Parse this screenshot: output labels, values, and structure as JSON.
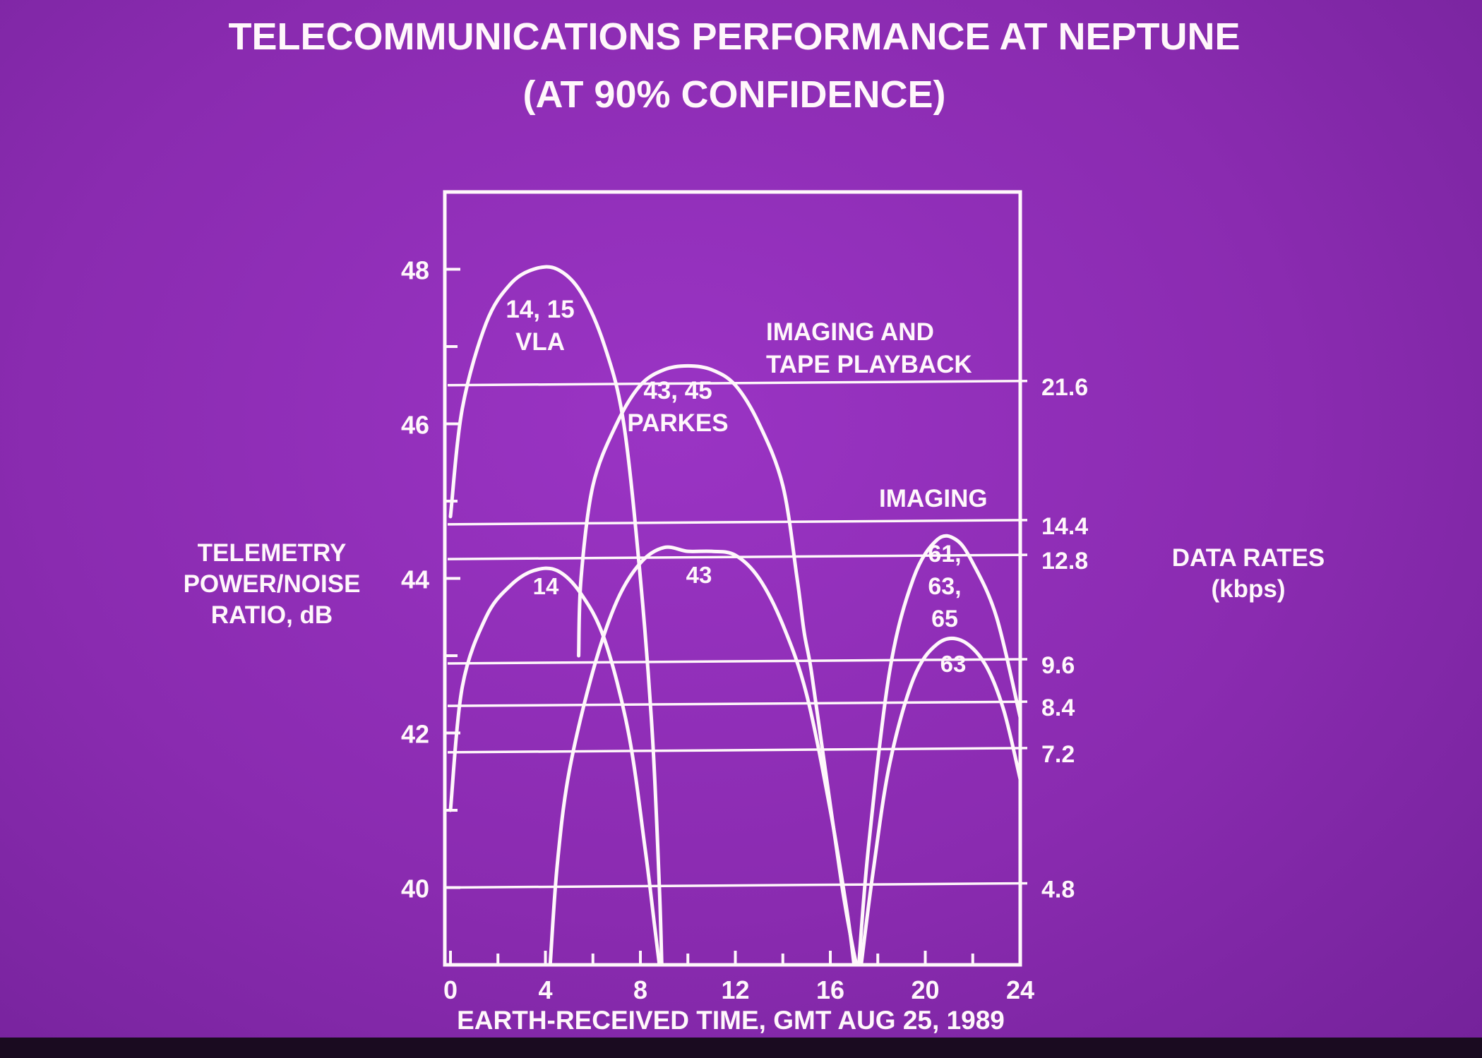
{
  "colors": {
    "background": "#8a2bb0",
    "ink": "#fff7fb",
    "bottom_band": "#1a0b20"
  },
  "chart_data": {
    "type": "line",
    "title": "TELECOMMUNICATIONS PERFORMANCE AT NEPTUNE",
    "subtitle": "(AT 90% CONFIDENCE)",
    "xlabel": "EARTH-RECEIVED TIME, GMT AUG 25, 1989",
    "ylabel_lines": [
      "TELEMETRY",
      "POWER/NOISE",
      "RATIO, dB"
    ],
    "y2label_lines": [
      "DATA RATES",
      "(kbps)"
    ],
    "xlim": [
      0,
      24
    ],
    "ylim": [
      39,
      49
    ],
    "x_ticks": [
      "0",
      "4",
      "8",
      "12",
      "16",
      "20",
      "24"
    ],
    "y_ticks": [
      "40",
      "42",
      "44",
      "46",
      "48"
    ],
    "grid": false,
    "data_rate_thresholds": [
      {
        "label": "21.6",
        "db": 46.5
      },
      {
        "label": "14.4",
        "db": 44.7
      },
      {
        "label": "12.8",
        "db": 44.25
      },
      {
        "label": "9.6",
        "db": 42.9
      },
      {
        "label": "8.4",
        "db": 42.35
      },
      {
        "label": "7.2",
        "db": 41.75
      },
      {
        "label": "4.8",
        "db": 40.0
      }
    ],
    "threshold_labels": [
      {
        "text_lines": [
          "IMAGING AND",
          "TAPE PLAYBACK"
        ]
      },
      {
        "text_lines": [
          "IMAGING"
        ]
      }
    ],
    "series": [
      {
        "label_lines": [
          "14, 15",
          "VLA"
        ],
        "x": [
          0.0,
          0.5,
          1.5,
          2.5,
          3.5,
          4.5,
          5.5,
          6.5,
          7.3,
          8.0,
          8.5,
          8.8,
          8.9
        ],
        "y": [
          44.8,
          46.2,
          47.3,
          47.8,
          48.0,
          48.0,
          47.7,
          47.0,
          46.0,
          44.0,
          42.0,
          40.0,
          39.0
        ]
      },
      {
        "label_lines": [
          "14"
        ],
        "x": [
          0.0,
          0.5,
          1.5,
          2.5,
          3.5,
          4.5,
          5.5,
          6.5,
          7.5,
          8.2,
          8.6,
          8.8
        ],
        "y": [
          41.0,
          42.6,
          43.5,
          43.9,
          44.1,
          44.1,
          43.8,
          43.2,
          42.0,
          40.5,
          39.5,
          39.0
        ]
      },
      {
        "label_lines": [
          "43, 45",
          "PARKES"
        ],
        "x": [
          5.4,
          5.5,
          6.0,
          7.0,
          8.0,
          9.0,
          10.0,
          11.0,
          12.0,
          13.0,
          14.0,
          14.6,
          14.9,
          15.2,
          15.8,
          16.5,
          16.9,
          17.1
        ],
        "y": [
          43.0,
          44.0,
          45.2,
          46.0,
          46.5,
          46.7,
          46.75,
          46.7,
          46.5,
          46.0,
          45.2,
          44.0,
          43.3,
          42.8,
          41.5,
          40.0,
          39.3,
          39.0
        ]
      },
      {
        "label_lines": [
          "43"
        ],
        "x": [
          4.2,
          4.5,
          5.0,
          6.0,
          7.0,
          8.0,
          9.0,
          10.0,
          11.0,
          12.0,
          13.0,
          14.0,
          15.0,
          16.0,
          16.7,
          17.0
        ],
        "y": [
          39.0,
          40.3,
          41.5,
          42.8,
          43.7,
          44.2,
          44.4,
          44.35,
          44.35,
          44.3,
          44.0,
          43.4,
          42.5,
          41.0,
          39.7,
          39.0
        ]
      },
      {
        "label_lines": [
          "61,",
          "63,",
          "65"
        ],
        "x": [
          17.2,
          17.6,
          18.5,
          19.5,
          20.5,
          21.3,
          22.0,
          23.0,
          24.0
        ],
        "y": [
          39.0,
          40.5,
          42.8,
          44.0,
          44.5,
          44.5,
          44.2,
          43.5,
          42.2
        ]
      },
      {
        "label_lines": [
          "63"
        ],
        "x": [
          17.3,
          17.8,
          18.5,
          19.5,
          20.5,
          21.5,
          22.5,
          23.3,
          24.0
        ],
        "y": [
          39.0,
          40.2,
          41.6,
          42.7,
          43.15,
          43.2,
          42.9,
          42.3,
          41.4
        ]
      }
    ]
  }
}
